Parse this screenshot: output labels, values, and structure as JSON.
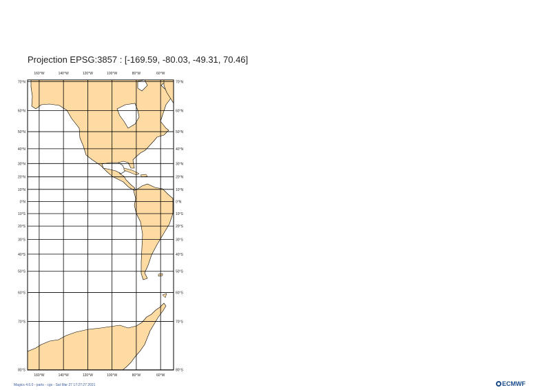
{
  "title": "Projection EPSG:3857 : [-169.59, -80.03, -49.31, 70.46]",
  "footer": "Magics 4.6.0 - parts - cgs - Sat Mar 27 17:27:27 2021",
  "logo": "ECMWF",
  "colors": {
    "land": "#fddba2",
    "coast": "#000000",
    "grid": "#000000",
    "frame": "#000000",
    "logo": "#1b4b8a"
  },
  "map": {
    "projection": "EPSG:3857",
    "extent": {
      "lon_min": -169.59,
      "lat_min": -80.03,
      "lon_max": -49.31,
      "lat_max": 70.46
    },
    "lon_labels": [
      "160°W",
      "140°W",
      "120°W",
      "100°W",
      "80°W",
      "60°W"
    ],
    "lat_labels": [
      "70°N",
      "60°N",
      "50°N",
      "40°N",
      "30°N",
      "20°N",
      "10°N",
      "0°N",
      "10°S",
      "20°S",
      "30°S",
      "40°S",
      "50°S",
      "60°S",
      "70°S",
      "80°S"
    ]
  }
}
